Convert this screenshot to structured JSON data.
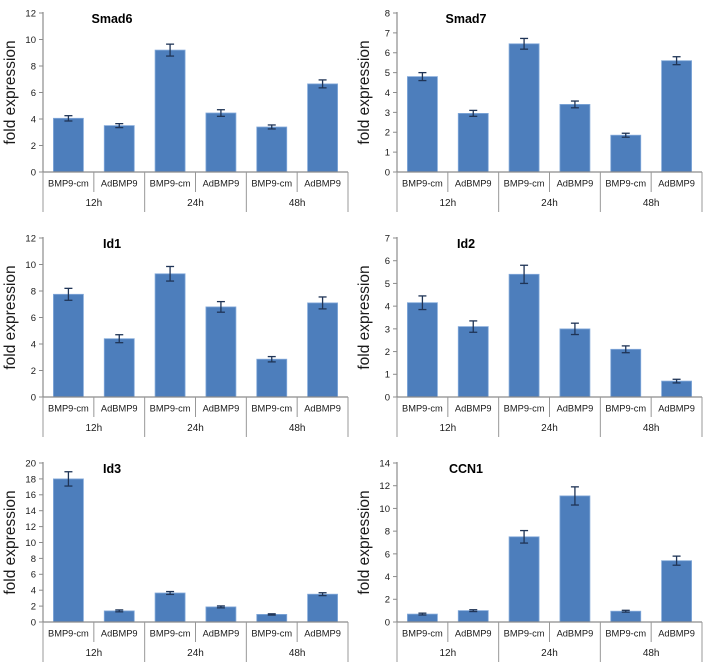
{
  "figure": {
    "background": "#ffffff",
    "layout": "2 columns x 3 rows of bar charts"
  },
  "colors": {
    "bar_fill": "#4d7ebc",
    "bar_border": "#84aada",
    "error_bar": "#1f3456",
    "axis_line": "#8c8c8c",
    "separator_line": "#989898",
    "tick_text": "#1a1a1a",
    "title_text": "#000000",
    "ylabel_text": "#1a1a1a"
  },
  "chart_data": [
    {
      "type": "bar",
      "title": "Smad6",
      "ylabel": "fold expression",
      "ylim": [
        0,
        12
      ],
      "ytick_step": 2,
      "grid": false,
      "legend": "none",
      "group_labels": [
        "12h",
        "24h",
        "48h"
      ],
      "bar_labels": [
        "BMP9-cm",
        "AdBMP9"
      ],
      "values": [
        [
          4.05,
          3.5
        ],
        [
          9.2,
          4.45
        ],
        [
          3.4,
          6.65
        ]
      ],
      "errors": [
        [
          0.2,
          0.15
        ],
        [
          0.45,
          0.25
        ],
        [
          0.15,
          0.3
        ]
      ]
    },
    {
      "type": "bar",
      "title": "Smad7",
      "ylabel": "fold expression",
      "ylim": [
        0,
        8
      ],
      "ytick_step": 1,
      "grid": false,
      "legend": "none",
      "group_labels": [
        "12h",
        "24h",
        "48h"
      ],
      "bar_labels": [
        "BMP9-cm",
        "AdBMP9"
      ],
      "values": [
        [
          4.8,
          2.95
        ],
        [
          6.45,
          3.4
        ],
        [
          1.85,
          5.6
        ]
      ],
      "errors": [
        [
          0.2,
          0.15
        ],
        [
          0.27,
          0.17
        ],
        [
          0.1,
          0.2
        ]
      ]
    },
    {
      "type": "bar",
      "title": "Id1",
      "ylabel": "fold expression",
      "ylim": [
        0,
        12
      ],
      "ytick_step": 2,
      "grid": false,
      "legend": "none",
      "group_labels": [
        "12h",
        "24h",
        "48h"
      ],
      "bar_labels": [
        "BMP9-cm",
        "AdBMP9"
      ],
      "values": [
        [
          7.75,
          4.4
        ],
        [
          9.3,
          6.8
        ],
        [
          2.85,
          7.1
        ]
      ],
      "errors": [
        [
          0.45,
          0.3
        ],
        [
          0.55,
          0.4
        ],
        [
          0.2,
          0.45
        ]
      ]
    },
    {
      "type": "bar",
      "title": "Id2",
      "ylabel": "fold expression",
      "ylim": [
        0,
        7
      ],
      "ytick_step": 1,
      "grid": false,
      "legend": "none",
      "group_labels": [
        "12h",
        "24h",
        "48h"
      ],
      "bar_labels": [
        "BMP9-cm",
        "AdBMP9"
      ],
      "values": [
        [
          4.15,
          3.1
        ],
        [
          5.4,
          3.0
        ],
        [
          2.1,
          0.7
        ]
      ],
      "errors": [
        [
          0.3,
          0.25
        ],
        [
          0.4,
          0.25
        ],
        [
          0.15,
          0.08
        ]
      ]
    },
    {
      "type": "bar",
      "title": "Id3",
      "ylabel": "fold expression",
      "ylim": [
        0,
        20
      ],
      "ytick_step": 2,
      "grid": false,
      "legend": "none",
      "group_labels": [
        "12h",
        "24h",
        "48h"
      ],
      "bar_labels": [
        "BMP9-cm",
        "AdBMP9"
      ],
      "values": [
        [
          18.0,
          1.4
        ],
        [
          3.65,
          1.9
        ],
        [
          0.95,
          3.5
        ]
      ],
      "errors": [
        [
          0.9,
          0.12
        ],
        [
          0.18,
          0.12
        ],
        [
          0.08,
          0.18
        ]
      ]
    },
    {
      "type": "bar",
      "title": "CCN1",
      "ylabel": "fold expression",
      "ylim": [
        0,
        14
      ],
      "ytick_step": 2,
      "grid": false,
      "legend": "none",
      "group_labels": [
        "12h",
        "24h",
        "48h"
      ],
      "bar_labels": [
        "BMP9-cm",
        "AdBMP9"
      ],
      "values": [
        [
          0.7,
          1.0
        ],
        [
          7.5,
          11.1
        ],
        [
          0.95,
          5.4
        ]
      ],
      "errors": [
        [
          0.08,
          0.08
        ],
        [
          0.55,
          0.8
        ],
        [
          0.08,
          0.4
        ]
      ]
    }
  ]
}
